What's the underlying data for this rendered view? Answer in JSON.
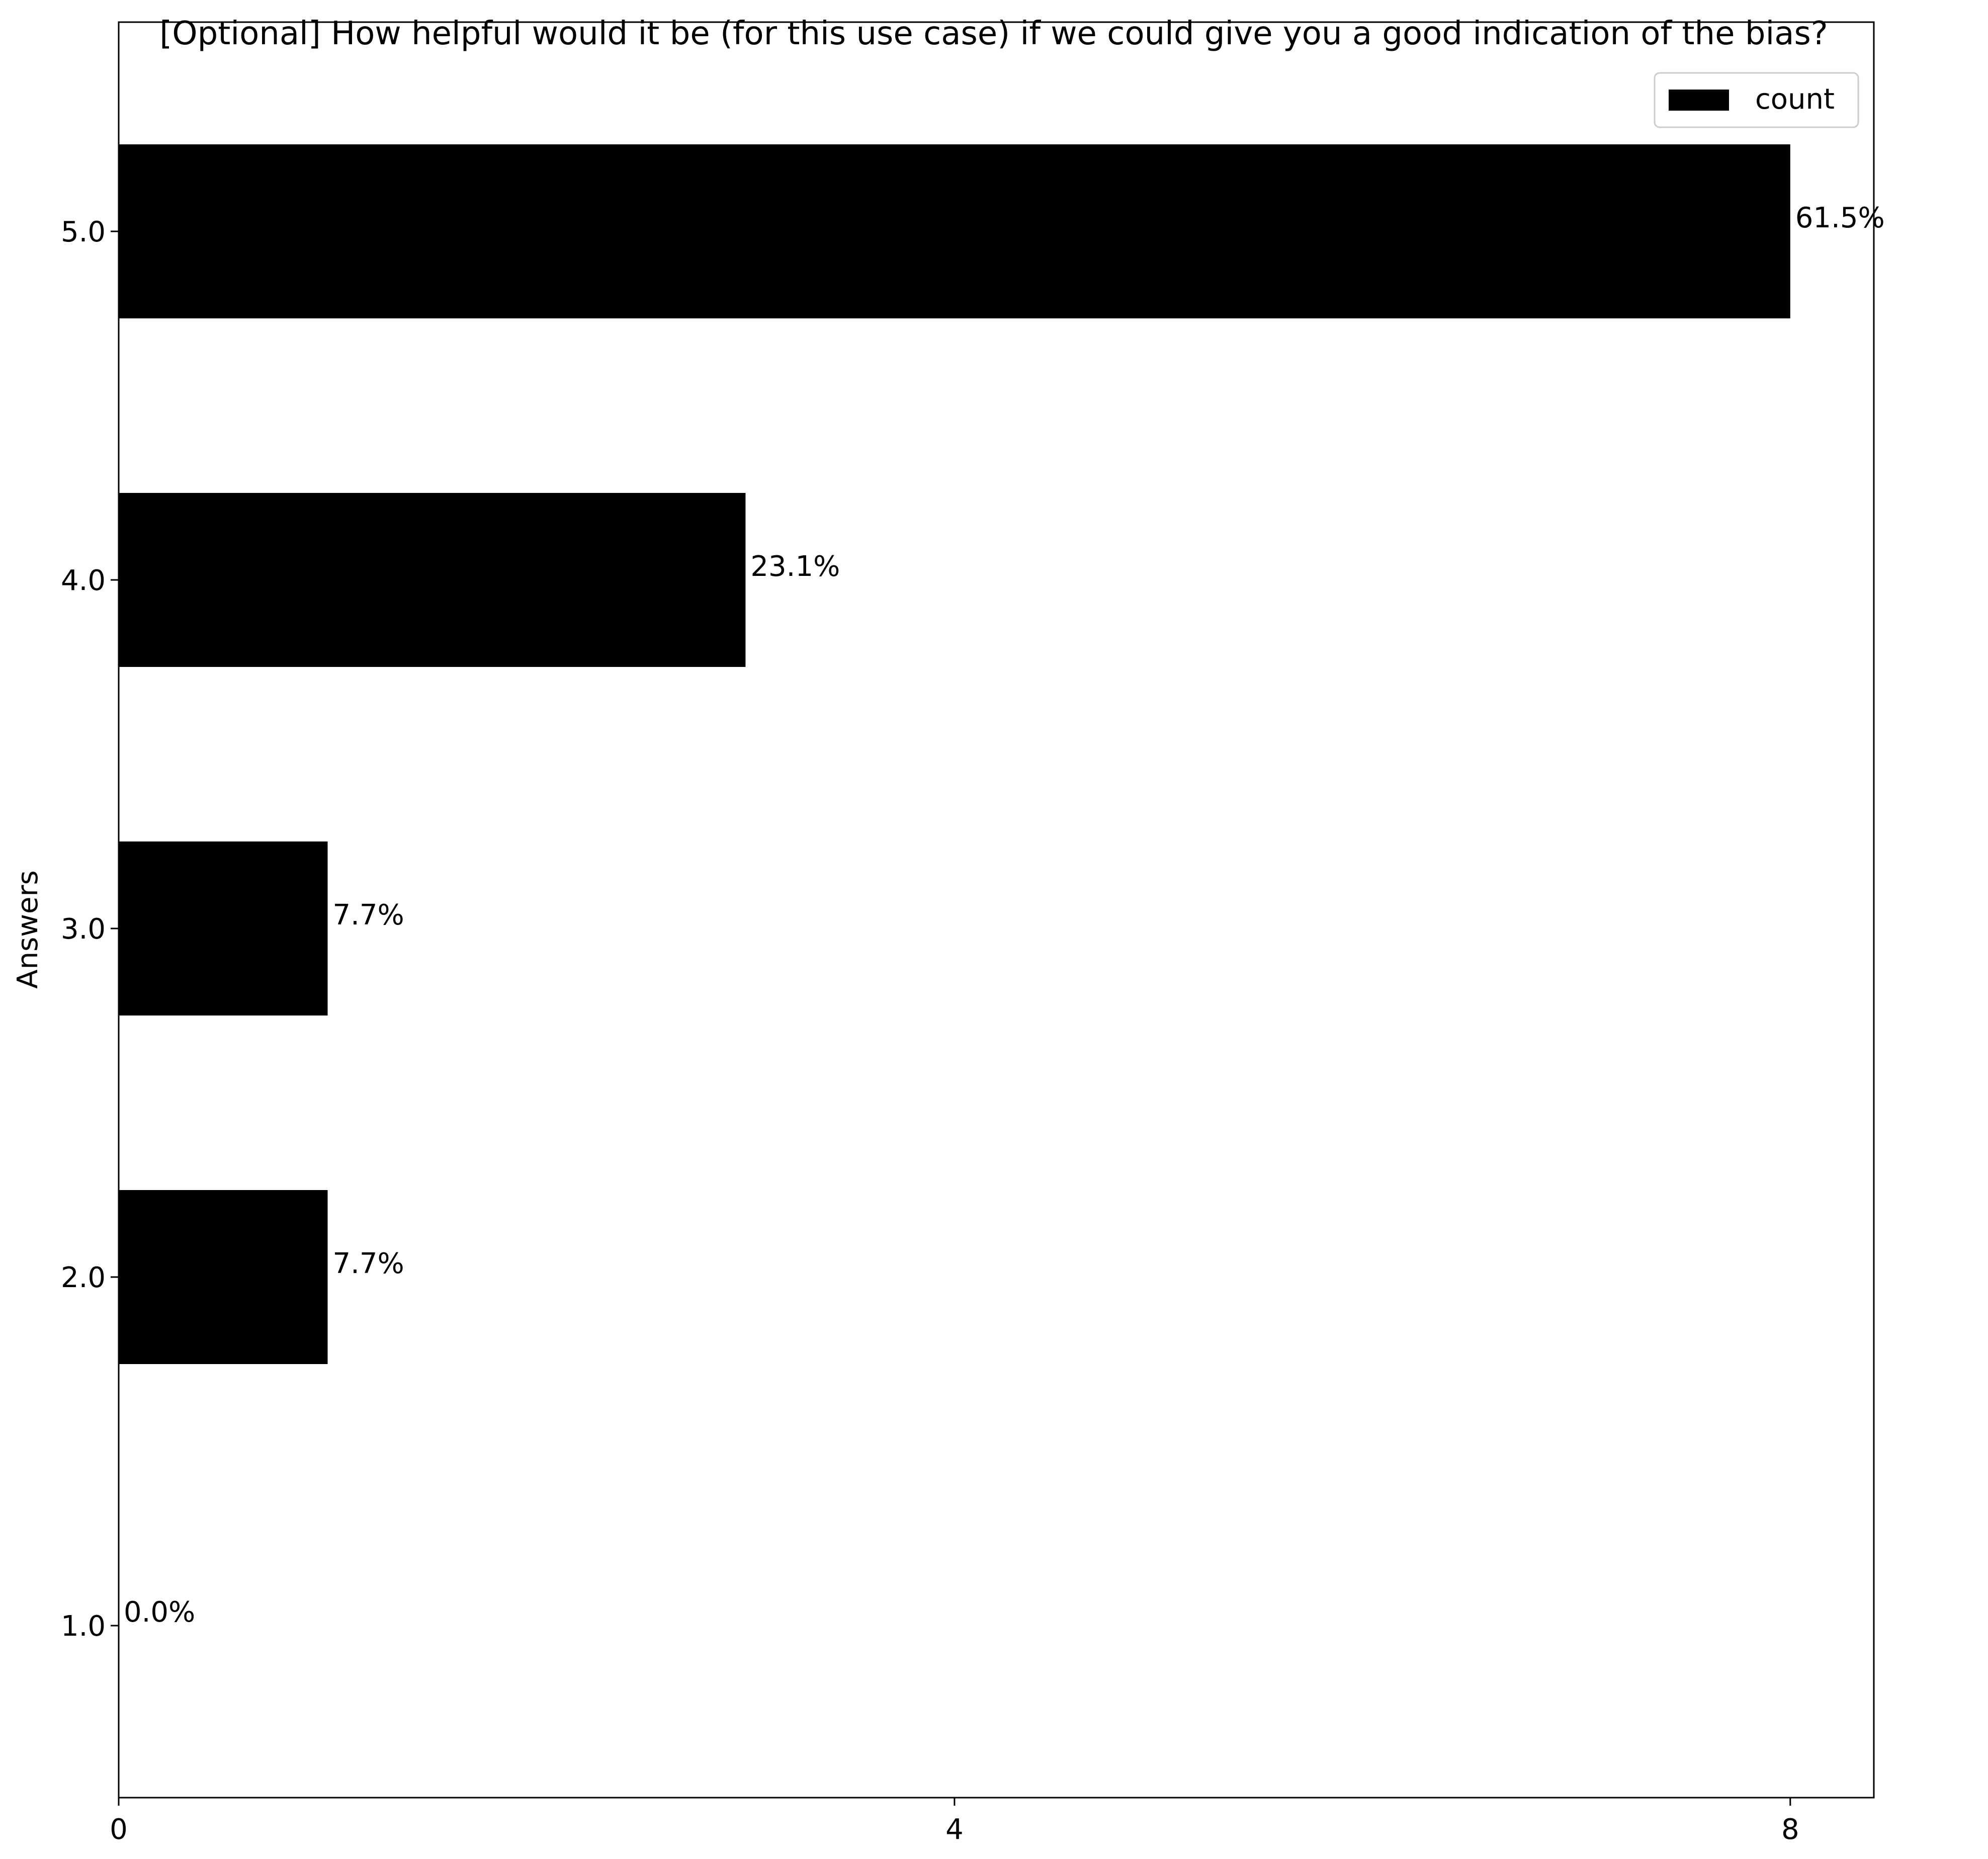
{
  "chart_data": {
    "type": "bar",
    "orientation": "horizontal",
    "title": "[Optional] How helpful would it be (for this use case) if we could give you a good indication of the bias?",
    "xlabel": "",
    "ylabel": "Answers",
    "categories": [
      "1.0",
      "2.0",
      "3.0",
      "4.0",
      "5.0"
    ],
    "series": [
      {
        "name": "count",
        "values": [
          0,
          1,
          1,
          3,
          8
        ],
        "labels": [
          "0.0%",
          "7.7%",
          "7.7%",
          "23.1%",
          "61.5%"
        ],
        "color": "#000000"
      }
    ],
    "xlim": [
      0,
      8.4
    ],
    "xticks": [
      0,
      4,
      8
    ],
    "xtick_labels": [
      "0",
      "4",
      "8"
    ],
    "grid": false,
    "legend": {
      "position": "top-right",
      "entries": [
        "count"
      ]
    }
  }
}
